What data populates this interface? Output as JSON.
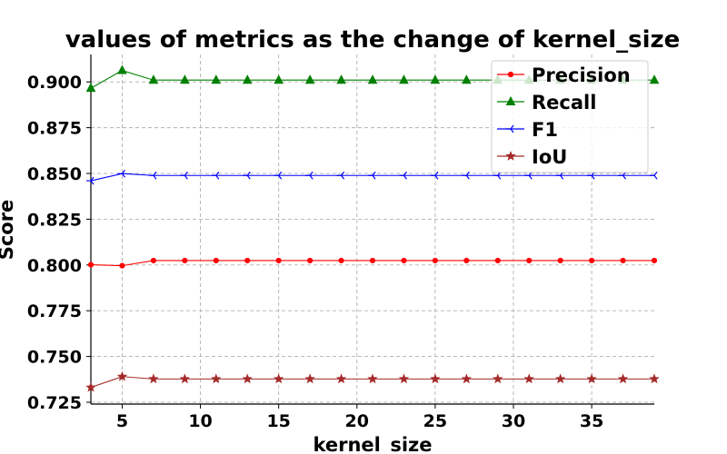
{
  "chart_data": {
    "type": "line",
    "title": "values of metrics as the change of kernel_size",
    "xlabel": "kernel_size",
    "ylabel": "Score",
    "xlim": [
      3,
      39
    ],
    "ylim": [
      0.724,
      0.915
    ],
    "x": [
      3,
      5,
      7,
      9,
      11,
      13,
      15,
      17,
      19,
      21,
      23,
      25,
      27,
      29,
      31,
      33,
      35,
      37,
      39
    ],
    "x_ticks": [
      "5",
      "10",
      "15",
      "20",
      "25",
      "30",
      "35"
    ],
    "y_ticks": [
      "0.725",
      "0.750",
      "0.775",
      "0.800",
      "0.825",
      "0.850",
      "0.875",
      "0.900"
    ],
    "grid": true,
    "legend_position": "top-right",
    "series": [
      {
        "name": "Precision",
        "color": "#ff0000",
        "marker": "circle",
        "values": [
          0.8001,
          0.7996,
          0.8024,
          0.8024,
          0.8024,
          0.8024,
          0.8024,
          0.8024,
          0.8024,
          0.8024,
          0.8024,
          0.8024,
          0.8024,
          0.8024,
          0.8024,
          0.8024,
          0.8024,
          0.8024,
          0.8024
        ]
      },
      {
        "name": "Recall",
        "color": "#008000",
        "marker": "triangle",
        "values": [
          0.8966,
          0.9063,
          0.901,
          0.901,
          0.901,
          0.901,
          0.901,
          0.901,
          0.901,
          0.901,
          0.901,
          0.901,
          0.901,
          0.901,
          0.901,
          0.901,
          0.901,
          0.901,
          0.901
        ]
      },
      {
        "name": "F1",
        "color": "#0000ff",
        "marker": "tri_left",
        "values": [
          0.846,
          0.8499,
          0.8489,
          0.8489,
          0.8489,
          0.8489,
          0.8489,
          0.8489,
          0.8489,
          0.8489,
          0.8489,
          0.8489,
          0.8489,
          0.8489,
          0.8489,
          0.8489,
          0.8489,
          0.8489,
          0.8489
        ]
      },
      {
        "name": "IoU",
        "color": "#a52a2a",
        "marker": "star",
        "values": [
          0.7331,
          0.739,
          0.7377,
          0.7377,
          0.7377,
          0.7377,
          0.7377,
          0.7377,
          0.7377,
          0.7377,
          0.7377,
          0.7377,
          0.7377,
          0.7377,
          0.7377,
          0.7377,
          0.7377,
          0.7377,
          0.7377
        ]
      }
    ]
  }
}
